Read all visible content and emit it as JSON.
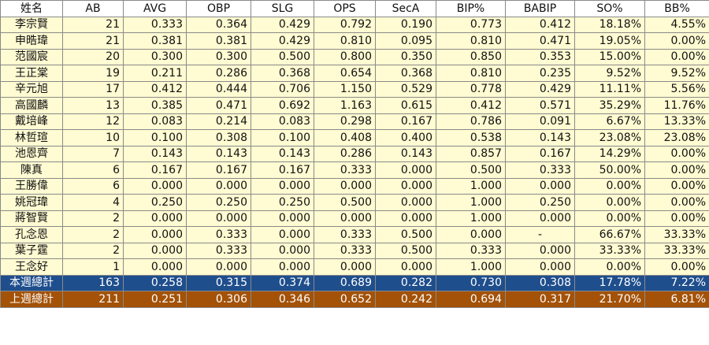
{
  "headers": [
    "姓名",
    "AB",
    "AVG",
    "OBP",
    "SLG",
    "OPS",
    "SecA",
    "BIP%",
    "BABIP",
    "SO%",
    "BB%"
  ],
  "rows": [
    [
      "李宗賢",
      "21",
      "0.333",
      "0.364",
      "0.429",
      "0.792",
      "0.190",
      "0.773",
      "0.412",
      "18.18%",
      "4.55%"
    ],
    [
      "申晧瑋",
      "21",
      "0.381",
      "0.381",
      "0.429",
      "0.810",
      "0.095",
      "0.810",
      "0.471",
      "19.05%",
      "0.00%"
    ],
    [
      "范國宸",
      "20",
      "0.300",
      "0.300",
      "0.500",
      "0.800",
      "0.350",
      "0.850",
      "0.353",
      "15.00%",
      "0.00%"
    ],
    [
      "王正棠",
      "19",
      "0.211",
      "0.286",
      "0.368",
      "0.654",
      "0.368",
      "0.810",
      "0.235",
      "9.52%",
      "9.52%"
    ],
    [
      "辛元旭",
      "17",
      "0.412",
      "0.444",
      "0.706",
      "1.150",
      "0.529",
      "0.778",
      "0.429",
      "11.11%",
      "5.56%"
    ],
    [
      "高國麟",
      "13",
      "0.385",
      "0.471",
      "0.692",
      "1.163",
      "0.615",
      "0.412",
      "0.571",
      "35.29%",
      "11.76%"
    ],
    [
      "戴培峰",
      "12",
      "0.083",
      "0.214",
      "0.083",
      "0.298",
      "0.167",
      "0.786",
      "0.091",
      "6.67%",
      "13.33%"
    ],
    [
      "林哲瑄",
      "10",
      "0.100",
      "0.308",
      "0.100",
      "0.408",
      "0.400",
      "0.538",
      "0.143",
      "23.08%",
      "23.08%"
    ],
    [
      "池恩齊",
      "7",
      "0.143",
      "0.143",
      "0.143",
      "0.286",
      "0.143",
      "0.857",
      "0.167",
      "14.29%",
      "0.00%"
    ],
    [
      "陳真",
      "6",
      "0.167",
      "0.167",
      "0.167",
      "0.333",
      "0.000",
      "0.500",
      "0.333",
      "50.00%",
      "0.00%"
    ],
    [
      "王勝偉",
      "6",
      "0.000",
      "0.000",
      "0.000",
      "0.000",
      "0.000",
      "1.000",
      "0.000",
      "0.00%",
      "0.00%"
    ],
    [
      "姚冠瑋",
      "4",
      "0.250",
      "0.250",
      "0.250",
      "0.500",
      "0.000",
      "1.000",
      "0.250",
      "0.00%",
      "0.00%"
    ],
    [
      "蔣智賢",
      "2",
      "0.000",
      "0.000",
      "0.000",
      "0.000",
      "0.000",
      "1.000",
      "0.000",
      "0.00%",
      "0.00%"
    ],
    [
      "孔念恩",
      "2",
      "0.000",
      "0.333",
      "0.000",
      "0.333",
      "0.500",
      "0.000",
      "-",
      "66.67%",
      "33.33%"
    ],
    [
      "葉子霆",
      "2",
      "0.000",
      "0.333",
      "0.000",
      "0.333",
      "0.500",
      "0.333",
      "0.000",
      "33.33%",
      "33.33%"
    ],
    [
      "王念好",
      "1",
      "0.000",
      "0.000",
      "0.000",
      "0.000",
      "0.000",
      "1.000",
      "0.000",
      "0.00%",
      "0.00%"
    ]
  ],
  "totals": [
    {
      "key": "this-week",
      "cells": [
        "本週總計",
        "163",
        "0.258",
        "0.315",
        "0.374",
        "0.689",
        "0.282",
        "0.730",
        "0.308",
        "17.78%",
        "7.22%"
      ]
    },
    {
      "key": "last-week",
      "cells": [
        "上週總計",
        "211",
        "0.251",
        "0.306",
        "0.346",
        "0.652",
        "0.242",
        "0.694",
        "0.317",
        "21.70%",
        "6.81%"
      ]
    }
  ],
  "colors": {
    "header_bg": "#ffffff",
    "row_bg": "#fffbd2",
    "grid_line": "#8a8a8a",
    "this_week_bg": "#1f4e8c",
    "last_week_bg": "#a35208",
    "total_text": "#ffffff"
  }
}
